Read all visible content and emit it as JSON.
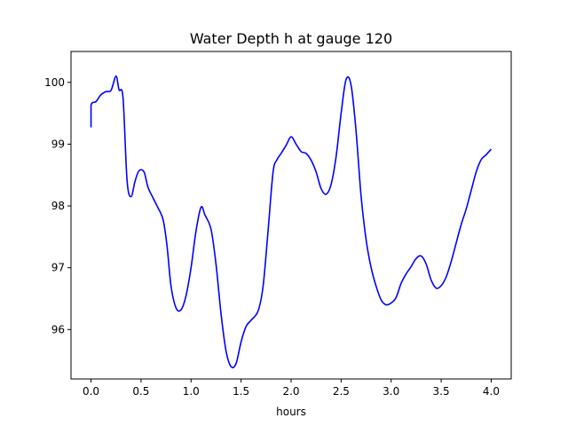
{
  "chart_data": {
    "type": "line",
    "title": "Water Depth h at gauge 120",
    "xlabel": "hours",
    "ylabel": "",
    "xlim": [
      -0.2,
      4.2
    ],
    "ylim": [
      95.2,
      100.5
    ],
    "xticks": [
      0.0,
      0.5,
      1.0,
      1.5,
      2.0,
      2.5,
      3.0,
      3.5,
      4.0
    ],
    "xtick_labels": [
      "0.0",
      "0.5",
      "1.0",
      "1.5",
      "2.0",
      "2.5",
      "3.0",
      "3.5",
      "4.0"
    ],
    "yticks": [
      96,
      97,
      98,
      99,
      100
    ],
    "ytick_labels": [
      "96",
      "97",
      "98",
      "99",
      "100"
    ],
    "grid": false,
    "series": [
      {
        "color": "#0000ff",
        "x": [
          0.0,
          0.0,
          0.05,
          0.1,
          0.15,
          0.2,
          0.25,
          0.28,
          0.32,
          0.36,
          0.4,
          0.44,
          0.48,
          0.53,
          0.57,
          0.62,
          0.66,
          0.72,
          0.76,
          0.8,
          0.85,
          0.9,
          0.95,
          1.0,
          1.05,
          1.1,
          1.14,
          1.2,
          1.25,
          1.3,
          1.35,
          1.4,
          1.45,
          1.5,
          1.55,
          1.6,
          1.67,
          1.72,
          1.77,
          1.82,
          1.86,
          1.9,
          1.95,
          2.0,
          2.05,
          2.1,
          2.15,
          2.2,
          2.25,
          2.3,
          2.35,
          2.4,
          2.45,
          2.5,
          2.55,
          2.6,
          2.65,
          2.7,
          2.75,
          2.8,
          2.85,
          2.9,
          2.95,
          3.0,
          3.05,
          3.1,
          3.15,
          3.2,
          3.25,
          3.3,
          3.35,
          3.4,
          3.45,
          3.5,
          3.55,
          3.6,
          3.65,
          3.7,
          3.75,
          3.8,
          3.85,
          3.9,
          3.95,
          4.0
        ],
        "y": [
          99.27,
          99.63,
          99.69,
          99.8,
          99.85,
          99.87,
          100.1,
          99.88,
          99.75,
          98.42,
          98.15,
          98.4,
          98.57,
          98.55,
          98.3,
          98.13,
          98.0,
          97.78,
          97.35,
          96.7,
          96.35,
          96.32,
          96.55,
          97.0,
          97.6,
          97.98,
          97.85,
          97.62,
          97.05,
          96.25,
          95.65,
          95.4,
          95.45,
          95.8,
          96.05,
          96.15,
          96.3,
          96.7,
          97.6,
          98.55,
          98.75,
          98.85,
          98.98,
          99.12,
          99.0,
          98.88,
          98.85,
          98.74,
          98.55,
          98.28,
          98.19,
          98.35,
          98.8,
          99.5,
          100.05,
          99.95,
          99.2,
          98.15,
          97.45,
          97.0,
          96.7,
          96.48,
          96.4,
          96.43,
          96.52,
          96.75,
          96.9,
          97.02,
          97.15,
          97.19,
          97.06,
          96.8,
          96.67,
          96.71,
          96.85,
          97.1,
          97.4,
          97.7,
          97.95,
          98.25,
          98.55,
          98.75,
          98.83,
          98.92
        ]
      }
    ]
  }
}
